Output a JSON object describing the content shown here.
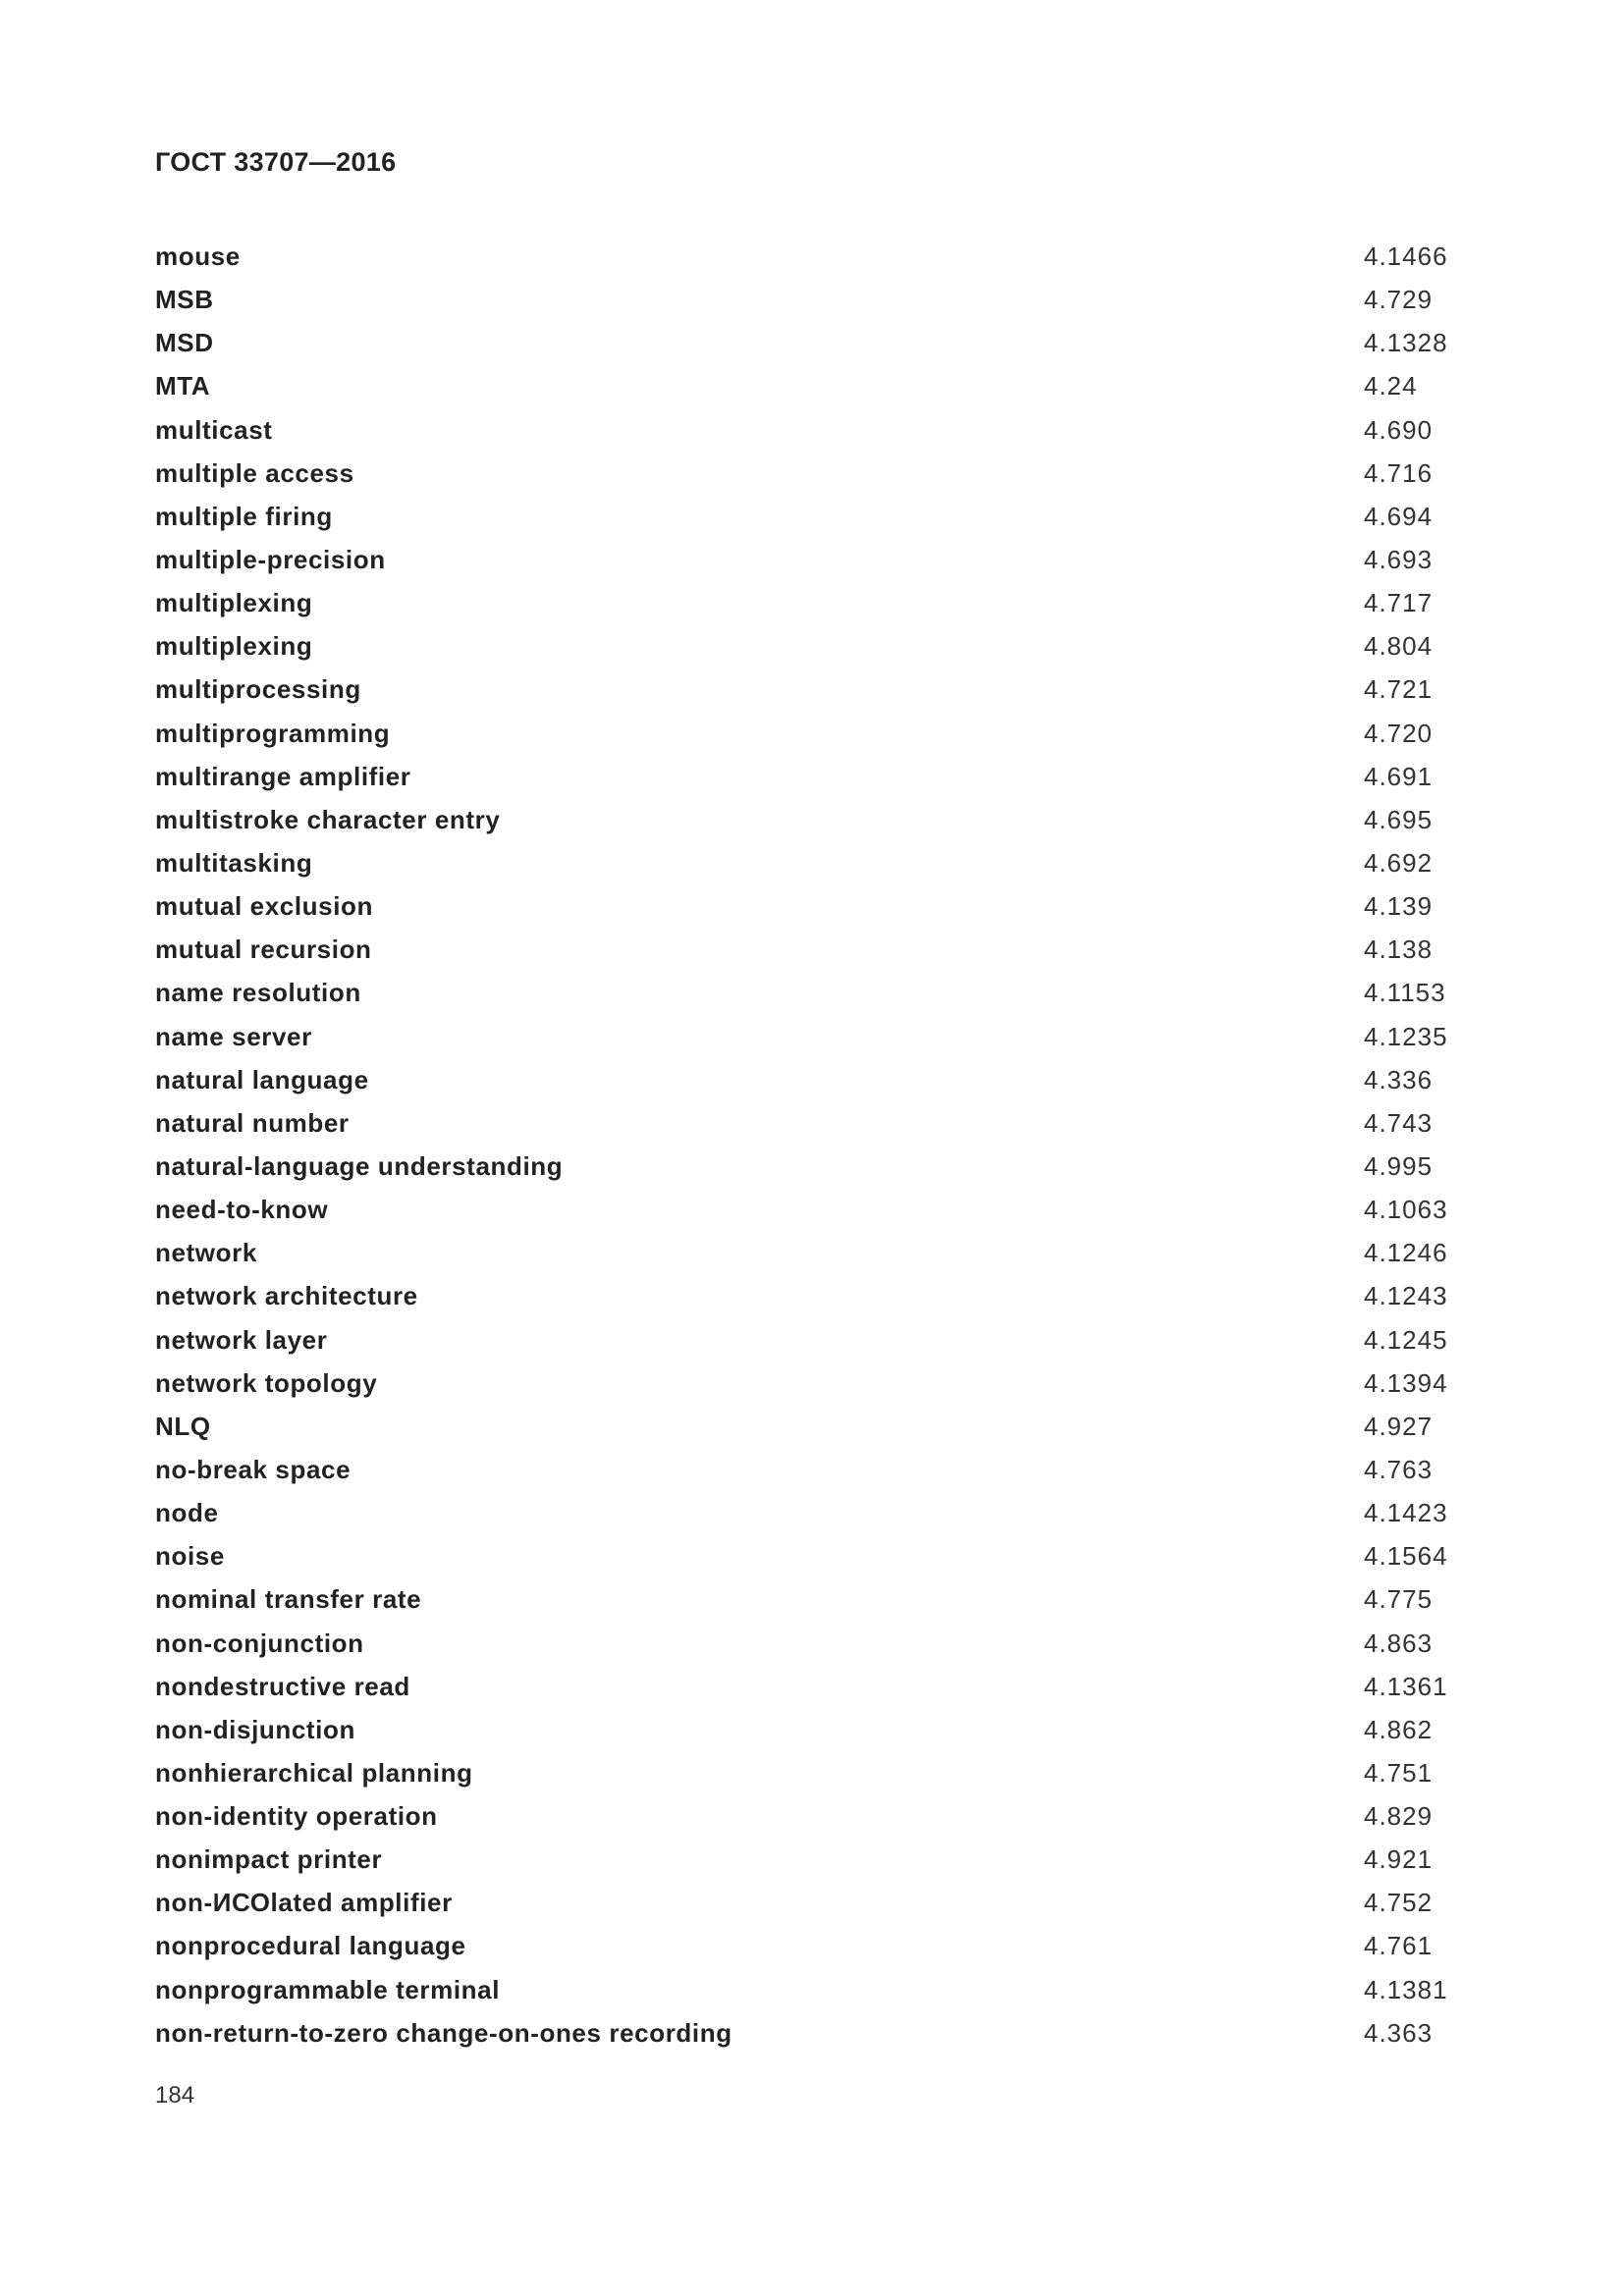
{
  "header": {
    "title": "ГОСТ 33707—2016"
  },
  "entries": [
    {
      "term": "mouse",
      "ref": "4.1466"
    },
    {
      "term": "MSB",
      "ref": "4.729"
    },
    {
      "term": "MSD",
      "ref": "4.1328"
    },
    {
      "term": "MTA",
      "ref": "4.24"
    },
    {
      "term": "multicast",
      "ref": "4.690"
    },
    {
      "term": "multiple access",
      "ref": "4.716"
    },
    {
      "term": "multiple firing",
      "ref": "4.694"
    },
    {
      "term": "multiple-precision",
      "ref": "4.693"
    },
    {
      "term": "multiplexing",
      "ref": "4.717"
    },
    {
      "term": "multiplexing",
      "ref": "4.804"
    },
    {
      "term": "multiprocessing",
      "ref": "4.721"
    },
    {
      "term": "multiprogramming",
      "ref": "4.720"
    },
    {
      "term": "multirange amplifier",
      "ref": "4.691"
    },
    {
      "term": "multistroke character entry",
      "ref": "4.695"
    },
    {
      "term": "multitasking",
      "ref": "4.692"
    },
    {
      "term": "mutual exclusion",
      "ref": "4.139"
    },
    {
      "term": "mutual recursion",
      "ref": "4.138"
    },
    {
      "term": "name resolution",
      "ref": "4.1153"
    },
    {
      "term": "name server",
      "ref": "4.1235"
    },
    {
      "term": "natural language",
      "ref": "4.336"
    },
    {
      "term": "natural number",
      "ref": "4.743"
    },
    {
      "term": "natural-language understanding",
      "ref": "4.995"
    },
    {
      "term": "need-to-know",
      "ref": "4.1063"
    },
    {
      "term": "network",
      "ref": "4.1246"
    },
    {
      "term": "network architecture",
      "ref": "4.1243"
    },
    {
      "term": "network layer",
      "ref": "4.1245"
    },
    {
      "term": "network topology",
      "ref": "4.1394"
    },
    {
      "term": "NLQ",
      "ref": "4.927"
    },
    {
      "term": "no-break space",
      "ref": "4.763"
    },
    {
      "term": "node",
      "ref": "4.1423"
    },
    {
      "term": "noise",
      "ref": "4.1564"
    },
    {
      "term": "nominal transfer rate",
      "ref": "4.775"
    },
    {
      "term": "non-conjunction",
      "ref": "4.863"
    },
    {
      "term": "nondestructive read",
      "ref": "4.1361"
    },
    {
      "term": "non-disjunction",
      "ref": "4.862"
    },
    {
      "term": "nonhierarchical planning",
      "ref": "4.751"
    },
    {
      "term": "non-identity operation",
      "ref": "4.829"
    },
    {
      "term": "nonimpact printer",
      "ref": "4.921"
    },
    {
      "term": "non-ИСОlated amplifier",
      "ref": "4.752"
    },
    {
      "term": "nonprocedural language",
      "ref": "4.761"
    },
    {
      "term": "nonprogrammable terminal",
      "ref": "4.1381"
    },
    {
      "term": "non-return-to-zero change-on-ones recording",
      "ref": "4.363"
    }
  ],
  "footer": {
    "page_number": "184"
  }
}
